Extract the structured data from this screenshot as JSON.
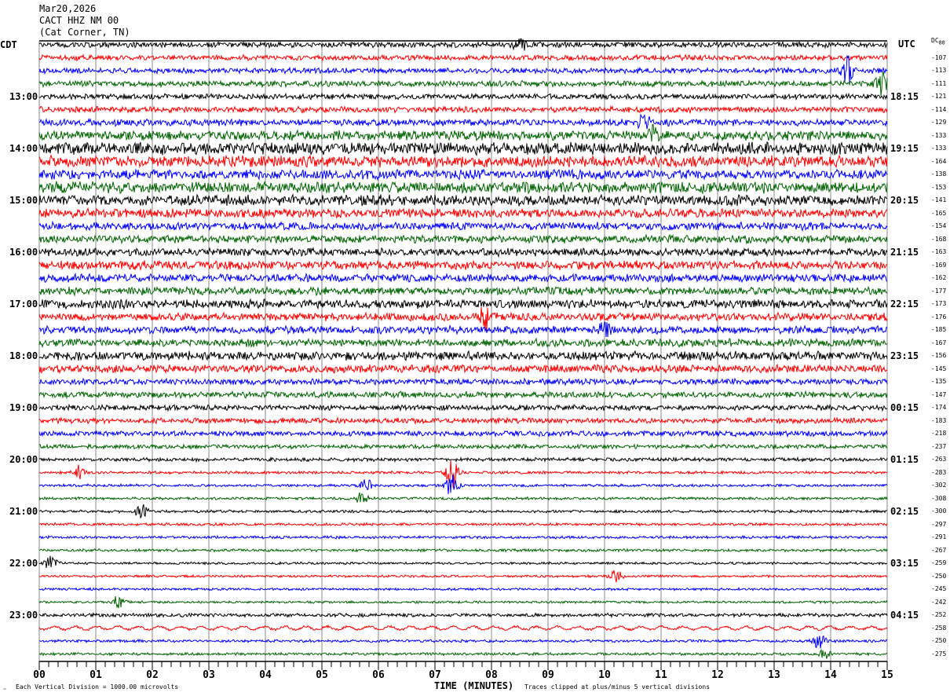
{
  "chart_data": {
    "type": "line",
    "title_lines": [
      "Mar20,2026",
      "CACT HHZ NM 00",
      "(Cat Corner, TN)"
    ],
    "left_zone": "CDT",
    "right_zone": "UTC",
    "dc_header": "DC",
    "dc_header_first": "80",
    "xlabel": "TIME (MINUTES)",
    "xlim": [
      0,
      15
    ],
    "xticks": [
      "00",
      "01",
      "02",
      "03",
      "04",
      "05",
      "06",
      "07",
      "08",
      "09",
      "10",
      "11",
      "12",
      "13",
      "14",
      "15"
    ],
    "minor_ticks_per_minute": 6,
    "grid": true,
    "scale_note": "Each Vertical Division = 1000.00 microvolts",
    "clip_note": "Traces clipped at plus/minus 5 vertical divisions",
    "corner_mark": "゠",
    "colors": [
      "#000000",
      "#ff0000",
      "#0000ff",
      "#006400"
    ],
    "left_labels": [
      "CDT",
      "13:00",
      "14:00",
      "15:00",
      "16:00",
      "17:00",
      "18:00",
      "19:00",
      "20:00",
      "21:00",
      "22:00",
      "23:00"
    ],
    "right_labels": [
      "UTC",
      "18:15",
      "19:15",
      "20:15",
      "21:15",
      "22:15",
      "23:15",
      "00:15",
      "01:15",
      "02:15",
      "03:15",
      "04:15"
    ],
    "dc_offsets": [
      null,
      "-107",
      "-113",
      "-111",
      "-121",
      "-114",
      "-129",
      "-133",
      "-133",
      "-164",
      "-138",
      "-153",
      "-141",
      "-165",
      "-154",
      "-168",
      "-163",
      "-169",
      "-162",
      "-177",
      "-173",
      "-176",
      "-185",
      "-167",
      "-156",
      "-145",
      "-135",
      "-147",
      "-174",
      "-183",
      "-218",
      "-237",
      "-263",
      "-283",
      "-302",
      "-308",
      "-300",
      "-297",
      "-291",
      "-267",
      "-259",
      "-250",
      "-245",
      "-242",
      "-252",
      "-258",
      "-250",
      "-275"
    ],
    "trace_amplitude_div": [
      0.18,
      0.18,
      0.18,
      0.2,
      0.18,
      0.2,
      0.22,
      0.32,
      0.42,
      0.38,
      0.32,
      0.38,
      0.36,
      0.3,
      0.26,
      0.26,
      0.26,
      0.3,
      0.26,
      0.26,
      0.3,
      0.26,
      0.26,
      0.26,
      0.3,
      0.26,
      0.2,
      0.2,
      0.18,
      0.18,
      0.18,
      0.14,
      0.12,
      0.09,
      0.09,
      0.09,
      0.09,
      0.09,
      0.09,
      0.09,
      0.08,
      0.08,
      0.08,
      0.08,
      0.12,
      0.15,
      0.09,
      0.09
    ],
    "events": [
      {
        "row": 0,
        "minute": 8.5,
        "amp_div": 0.6
      },
      {
        "row": 2,
        "minute": 14.3,
        "amp_div": 1.0
      },
      {
        "row": 3,
        "minute": 14.9,
        "amp_div": 0.9
      },
      {
        "row": 6,
        "minute": 10.7,
        "amp_div": 0.7
      },
      {
        "row": 7,
        "minute": 10.9,
        "amp_div": 0.8
      },
      {
        "row": 21,
        "minute": 7.9,
        "amp_div": 1.0
      },
      {
        "row": 22,
        "minute": 10.0,
        "amp_div": 0.5
      },
      {
        "row": 33,
        "minute": 0.7,
        "amp_div": 0.5
      },
      {
        "row": 33,
        "minute": 7.3,
        "amp_div": 1.2
      },
      {
        "row": 34,
        "minute": 7.3,
        "amp_div": 0.9
      },
      {
        "row": 34,
        "minute": 5.8,
        "amp_div": 0.5
      },
      {
        "row": 35,
        "minute": 5.7,
        "amp_div": 0.5
      },
      {
        "row": 36,
        "minute": 1.8,
        "amp_div": 0.6
      },
      {
        "row": 40,
        "minute": 0.2,
        "amp_div": 0.6
      },
      {
        "row": 41,
        "minute": 10.2,
        "amp_div": 0.5
      },
      {
        "row": 43,
        "minute": 1.4,
        "amp_div": 0.5
      },
      {
        "row": 46,
        "minute": 13.8,
        "amp_div": 0.6
      },
      {
        "row": 47,
        "minute": 13.9,
        "amp_div": 0.4
      }
    ],
    "oscillating_rows": [
      45
    ]
  }
}
